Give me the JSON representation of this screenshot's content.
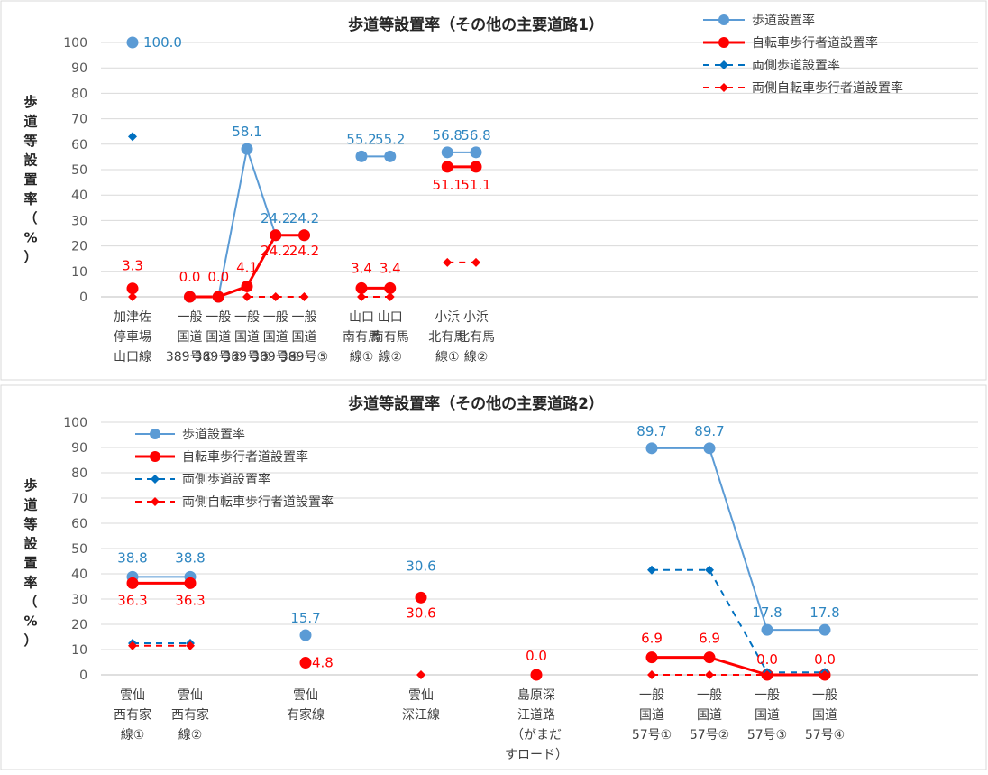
{
  "chart_data": [
    {
      "type": "line",
      "title": "歩道等設置率（その他の主要道路1）",
      "ylabel": [
        "歩",
        "道",
        "等",
        "設",
        "置",
        "率",
        "（",
        "%",
        "）"
      ],
      "ylim": [
        0,
        100
      ],
      "yticks": [
        "0",
        "10",
        "20",
        "30",
        "40",
        "50",
        "60",
        "70",
        "80",
        "90",
        "100"
      ],
      "grid": true,
      "legend_position": "top-right",
      "categories": [
        [
          "加津佐",
          "停車場",
          "山口線"
        ],
        [],
        [
          "一般",
          "国道",
          "389号①"
        ],
        [
          "一般",
          "国道",
          "389号②"
        ],
        [
          "一般",
          "国道",
          "389号③"
        ],
        [
          "一般",
          "国道",
          "389号④"
        ],
        [
          "一般",
          "国道",
          "389号⑤"
        ],
        [],
        [
          "山口",
          "南有馬",
          "線①"
        ],
        [
          "山口",
          "南有馬",
          "線②"
        ],
        [],
        [
          "小浜",
          "北有馬",
          "線①"
        ],
        [
          "小浜",
          "北有馬",
          "線②"
        ]
      ],
      "series": [
        {
          "name": "歩道設置率",
          "color": "#5B9BD5",
          "style": "solid-circle",
          "values": [
            100.0,
            null,
            0,
            0,
            58.1,
            24.2,
            24.2,
            null,
            55.2,
            55.2,
            null,
            56.8,
            56.8
          ],
          "labels": [
            "100.0",
            null,
            null,
            null,
            "58.1",
            "24.2",
            "24.2",
            null,
            "55.2",
            "55.2",
            null,
            "56.8",
            "56.8"
          ]
        },
        {
          "name": "自転車歩行者道設置率",
          "color": "#FF0000",
          "style": "solid-circle",
          "values": [
            3.3,
            null,
            0,
            0,
            4.1,
            24.2,
            24.2,
            null,
            3.4,
            3.4,
            null,
            51.1,
            51.1
          ],
          "labels": [
            "3.3",
            null,
            "0.0",
            "0.0",
            "4.1",
            "24.2",
            "24.2",
            null,
            "3.4",
            "3.4",
            null,
            "51.1",
            "51.1"
          ]
        },
        {
          "name": "両側歩道設置率",
          "color": "#0070C0",
          "style": "dashed-diamond",
          "values": [
            63,
            null,
            null,
            null,
            null,
            null,
            null,
            null,
            null,
            null,
            null,
            null,
            null
          ]
        },
        {
          "name": "両側自転車歩行者道設置率",
          "color": "#FF0000",
          "style": "dashed-diamond",
          "values": [
            0,
            null,
            null,
            null,
            0,
            0,
            0,
            null,
            0,
            0,
            null,
            13.5,
            13.5
          ]
        }
      ]
    },
    {
      "type": "line",
      "title": "歩道等設置率（その他の主要道路2）",
      "ylabel": [
        "歩",
        "道",
        "等",
        "設",
        "置",
        "率",
        "（",
        "%",
        "）"
      ],
      "ylim": [
        0,
        100
      ],
      "yticks": [
        "0",
        "10",
        "20",
        "30",
        "40",
        "50",
        "60",
        "70",
        "80",
        "90",
        "100"
      ],
      "grid": true,
      "legend_position": "top-left",
      "categories": [
        [
          "雲仙",
          "西有家",
          "線①"
        ],
        [
          "雲仙",
          "西有家",
          "線②"
        ],
        [],
        [
          "雲仙",
          "有家線"
        ],
        [],
        [
          "雲仙",
          "深江線"
        ],
        [],
        [
          "島原深",
          "江道路",
          "（がまだ",
          "すロード）"
        ],
        [],
        [
          "一般",
          "国道",
          "57号①"
        ],
        [
          "一般",
          "国道",
          "57号②"
        ],
        [
          "一般",
          "国道",
          "57号③"
        ],
        [
          "一般",
          "国道",
          "57号④"
        ]
      ],
      "series": [
        {
          "name": "歩道設置率",
          "color": "#5B9BD5",
          "style": "solid-circle",
          "values": [
            38.8,
            38.8,
            null,
            15.7,
            null,
            null,
            null,
            null,
            null,
            89.7,
            89.7,
            17.8,
            17.8
          ],
          "labels": [
            "38.8",
            "38.8",
            null,
            "15.7",
            null,
            "30.6",
            null,
            null,
            null,
            "89.7",
            "89.7",
            "17.8",
            "17.8"
          ]
        },
        {
          "name": "自転車歩行者道設置率",
          "color": "#FF0000",
          "style": "solid-circle",
          "values": [
            36.3,
            36.3,
            null,
            4.8,
            null,
            30.6,
            null,
            0.0,
            null,
            6.9,
            6.9,
            0.0,
            0.0
          ],
          "labels": [
            "36.3",
            "36.3",
            null,
            "4.8",
            null,
            "30.6",
            null,
            "0.0",
            null,
            "6.9",
            "6.9",
            "0.0",
            "0.0"
          ]
        },
        {
          "name": "両側歩道設置率",
          "color": "#0070C0",
          "style": "dashed-diamond",
          "values": [
            12.5,
            12.5,
            null,
            null,
            null,
            null,
            null,
            null,
            null,
            41.5,
            41.5,
            1,
            1
          ]
        },
        {
          "name": "両側自転車歩行者道設置率",
          "color": "#FF0000",
          "style": "dashed-diamond",
          "values": [
            11.5,
            11.5,
            null,
            null,
            null,
            0,
            null,
            null,
            null,
            0,
            0,
            0,
            0
          ]
        }
      ]
    }
  ]
}
